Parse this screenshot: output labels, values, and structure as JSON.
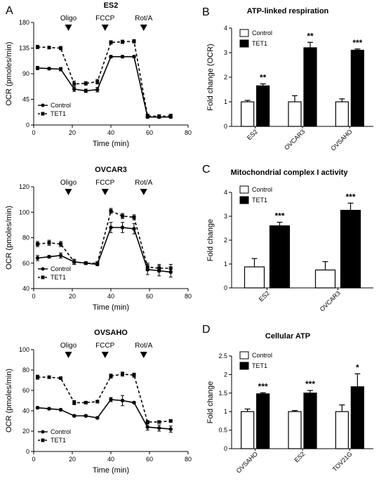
{
  "panels": {
    "A": "A",
    "B": "B",
    "C": "C",
    "D": "D"
  },
  "chart_data": [
    {
      "type": "line",
      "panel": "A",
      "title": "ES2",
      "xlabel": "Time (min)",
      "ylabel": "OCR (pmoles/min)",
      "xlim": [
        0,
        80
      ],
      "ylim": [
        0,
        180
      ],
      "xticks": [
        0,
        20,
        40,
        60,
        80
      ],
      "yticks": [
        0,
        45,
        90,
        135,
        180
      ],
      "injections": [
        {
          "label": "Oligo",
          "x": 18
        },
        {
          "label": "FCCP",
          "x": 37
        },
        {
          "label": "Rot/A",
          "x": 57
        }
      ],
      "series": [
        {
          "name": "Control",
          "style": "solid",
          "marker": "circle",
          "x": [
            2,
            8,
            14,
            21,
            27,
            33,
            40,
            46,
            52,
            59,
            65,
            71
          ],
          "y": [
            100,
            99,
            98,
            63,
            60,
            62,
            120,
            120,
            120,
            14,
            14,
            14
          ],
          "err": [
            3,
            2,
            3,
            4,
            3,
            4,
            2,
            2,
            2,
            2,
            2,
            2
          ]
        },
        {
          "name": "TET1",
          "style": "dashed",
          "marker": "square",
          "x": [
            2,
            8,
            14,
            21,
            27,
            33,
            40,
            46,
            52,
            59,
            65,
            71
          ],
          "y": [
            137,
            136,
            135,
            72,
            73,
            76,
            145,
            146,
            147,
            16,
            15,
            16
          ],
          "err": [
            3,
            2,
            3,
            5,
            3,
            4,
            3,
            3,
            3,
            3,
            3,
            3
          ]
        }
      ]
    },
    {
      "type": "line",
      "panel": "A",
      "title": "OVCAR3",
      "xlabel": "Time (min)",
      "ylabel": "OCR (pmoles/min)",
      "xlim": [
        0,
        80
      ],
      "ylim": [
        40,
        120
      ],
      "xticks": [
        0,
        20,
        40,
        60,
        80
      ],
      "yticks": [
        40,
        60,
        80,
        100,
        120
      ],
      "injections": [
        {
          "label": "Oligo",
          "x": 18
        },
        {
          "label": "FCCP",
          "x": 37
        },
        {
          "label": "Rot/A",
          "x": 57
        }
      ],
      "series": [
        {
          "name": "Control",
          "style": "solid",
          "marker": "circle",
          "x": [
            2,
            8,
            14,
            21,
            27,
            33,
            40,
            46,
            52,
            59,
            65,
            71
          ],
          "y": [
            64,
            65,
            66,
            61,
            60,
            59,
            88,
            88,
            87,
            55,
            54,
            53
          ],
          "err": [
            2,
            1,
            2,
            2,
            1,
            1,
            4,
            4,
            4,
            4,
            4,
            4
          ]
        },
        {
          "name": "TET1",
          "style": "dashed",
          "marker": "square",
          "x": [
            2,
            8,
            14,
            21,
            27,
            33,
            40,
            46,
            52,
            59,
            65,
            71
          ],
          "y": [
            75,
            76,
            75,
            61,
            60,
            60,
            101,
            97,
            96,
            57,
            56,
            56
          ],
          "err": [
            2,
            2,
            2,
            2,
            1,
            1,
            2,
            2,
            2,
            3,
            3,
            3
          ]
        }
      ]
    },
    {
      "type": "line",
      "panel": "A",
      "title": "OVSAHO",
      "xlabel": "Time (min)",
      "ylabel": "OCR (pmoles/min)",
      "xlim": [
        0,
        80
      ],
      "ylim": [
        0,
        100
      ],
      "xticks": [
        0,
        20,
        40,
        60,
        80
      ],
      "yticks": [
        0,
        20,
        40,
        60,
        80,
        100
      ],
      "injections": [
        {
          "label": "Oligo",
          "x": 18
        },
        {
          "label": "FCCP",
          "x": 37
        },
        {
          "label": "Rot/A",
          "x": 57
        }
      ],
      "series": [
        {
          "name": "Control",
          "style": "solid",
          "marker": "circle",
          "x": [
            2,
            8,
            14,
            21,
            27,
            33,
            40,
            46,
            52,
            59,
            65,
            71
          ],
          "y": [
            43,
            42,
            41,
            35,
            35,
            33,
            51,
            50,
            48,
            24,
            23,
            22
          ],
          "err": [
            1,
            1,
            1,
            1,
            1,
            1,
            2,
            5,
            1,
            3,
            3,
            3
          ]
        },
        {
          "name": "TET1",
          "style": "dashed",
          "marker": "square",
          "x": [
            2,
            8,
            14,
            21,
            27,
            33,
            40,
            46,
            52,
            59,
            65,
            71
          ],
          "y": [
            73,
            73,
            72,
            48,
            48,
            49,
            74,
            76,
            75,
            29,
            29,
            30
          ],
          "err": [
            2,
            1,
            1,
            2,
            1,
            1,
            2,
            2,
            2,
            1,
            1,
            1
          ]
        }
      ]
    },
    {
      "type": "bar",
      "panel": "B",
      "title": "ATP-linked respiration",
      "ylabel": "Fold change (OCR)",
      "ylim": [
        0,
        4
      ],
      "yticks": [
        0,
        1,
        2,
        3,
        4
      ],
      "categories": [
        "ES2",
        "OVCAR3",
        "OVSAHO"
      ],
      "series": [
        {
          "name": "Control",
          "values": [
            1.0,
            1.0,
            1.0
          ],
          "err": [
            0.06,
            0.25,
            0.12
          ]
        },
        {
          "name": "TET1",
          "values": [
            1.65,
            3.2,
            3.1
          ],
          "err": [
            0.08,
            0.22,
            0.05
          ]
        }
      ],
      "significance": [
        "**",
        "**",
        "***"
      ],
      "legend": "top-left"
    },
    {
      "type": "bar",
      "panel": "C",
      "title": "Mitochondrial complex I activity",
      "ylabel": "Fold change",
      "ylim": [
        0,
        4
      ],
      "yticks": [
        0,
        1,
        2,
        3,
        4
      ],
      "categories": [
        "ES2",
        "OVCAR3"
      ],
      "series": [
        {
          "name": "Control",
          "values": [
            0.88,
            0.75
          ],
          "err": [
            0.35,
            0.35
          ]
        },
        {
          "name": "TET1",
          "values": [
            2.6,
            3.25
          ],
          "err": [
            0.15,
            0.3
          ]
        }
      ],
      "significance": [
        "***",
        "***"
      ],
      "legend": "top-left"
    },
    {
      "type": "bar",
      "panel": "D",
      "title": "Cellular ATP",
      "ylabel": "Fold change",
      "ylim": [
        0,
        2.5
      ],
      "yticks": [
        0,
        0.5,
        1.0,
        1.5,
        2.0,
        2.5
      ],
      "categories": [
        "OVSAHO",
        "ES2",
        "TOV21G"
      ],
      "series": [
        {
          "name": "Control",
          "values": [
            1.0,
            1.0,
            1.0
          ],
          "err": [
            0.07,
            0.03,
            0.18
          ]
        },
        {
          "name": "TET1",
          "values": [
            1.48,
            1.5,
            1.67
          ],
          "err": [
            0.03,
            0.07,
            0.35
          ]
        }
      ],
      "significance": [
        "***",
        "***",
        "*"
      ],
      "legend": "top-left"
    }
  ]
}
